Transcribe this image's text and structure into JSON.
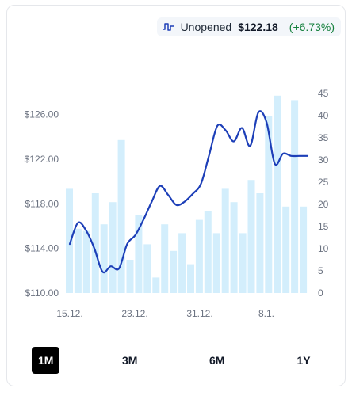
{
  "header": {
    "icon": "step-line-icon",
    "label": "Unopened",
    "price": "$122.18",
    "change": "(+6.73%)",
    "change_color": "#15803d"
  },
  "tabs": [
    {
      "label": "1M",
      "active": true
    },
    {
      "label": "3M",
      "active": false
    },
    {
      "label": "6M",
      "active": false
    },
    {
      "label": "1Y",
      "active": false
    }
  ],
  "chart_data": {
    "type": "line",
    "x_tick_labels": [
      "15.12.",
      "23.12.",
      "31.12.",
      "8.1."
    ],
    "y_left": {
      "range": [
        110,
        127.9
      ],
      "tick_labels": [
        "$110.00",
        "$114.00",
        "$118.00",
        "$122.00",
        "$126.00"
      ],
      "tick_values": [
        110,
        114,
        118,
        122,
        126
      ]
    },
    "y_right": {
      "range": [
        0,
        45
      ],
      "tick_labels": [
        "0",
        "5",
        "10",
        "15",
        "20",
        "25",
        "30",
        "35",
        "40",
        "45"
      ],
      "tick_values": [
        0,
        5,
        10,
        15,
        20,
        25,
        30,
        35,
        40,
        45
      ]
    },
    "series": [
      {
        "kind": "line",
        "axis": "left",
        "color": "#1d3fb8",
        "values": [
          114.4,
          116.3,
          115.6,
          114.0,
          111.9,
          112.4,
          112.2,
          114.4,
          115.2,
          116.6,
          118.2,
          119.6,
          118.8,
          117.9,
          118.2,
          118.9,
          119.8,
          122.4,
          125.0,
          124.6,
          123.6,
          124.8,
          123.2,
          126.2,
          125.3,
          121.6,
          122.5,
          122.3,
          122.3,
          122.3
        ]
      },
      {
        "kind": "bar",
        "axis": "right",
        "color": "#d3eefc",
        "values": [
          23.5,
          14.5,
          14,
          22.5,
          15.5,
          20.5,
          34.5,
          7.5,
          17.5,
          11,
          3.5,
          15.5,
          9.5,
          13.5,
          6.5,
          16.5,
          18.5,
          13.5,
          23.5,
          20.5,
          13.5,
          25.5,
          22.5,
          40,
          44.5,
          19.5,
          43.5,
          19.5
        ]
      }
    ],
    "grid": false,
    "legend": "none"
  }
}
